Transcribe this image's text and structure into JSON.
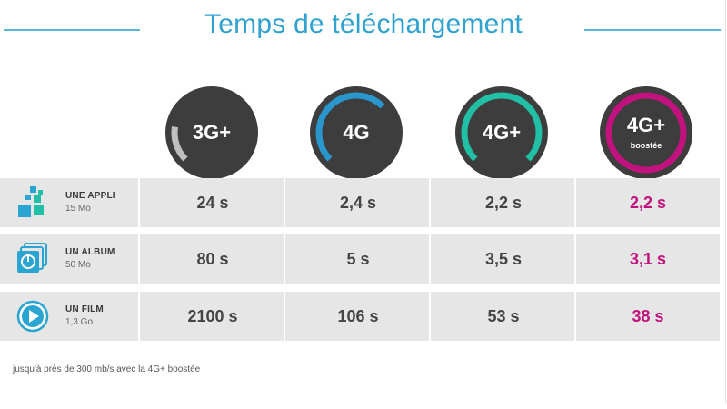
{
  "title": "Temps de téléchargement",
  "colors": {
    "title": "#2fa2cf",
    "circle_bg": "#3d3d3d",
    "highlight_text": "#c2127e"
  },
  "chart_data": {
    "type": "table",
    "columns": [
      {
        "label": "3G+",
        "sub": "",
        "ring_color": "#bfbfbf",
        "ring_fill": 0.15
      },
      {
        "label": "4G",
        "sub": "",
        "ring_color": "#2996cc",
        "ring_fill": 0.5
      },
      {
        "label": "4G+",
        "sub": "",
        "ring_color": "#20bfa6",
        "ring_fill": 0.75
      },
      {
        "label": "4G+",
        "sub": "boostée",
        "ring_color": "#c2127e",
        "ring_fill": 1.0
      }
    ],
    "rows": [
      {
        "name": "UNE APPLI",
        "size": "15 Mo",
        "icon": "app-icon",
        "values": [
          "24 s",
          "2,4 s",
          "2,2 s",
          "2,2 s"
        ]
      },
      {
        "name": "UN ALBUM",
        "size": "50 Mo",
        "icon": "album-icon",
        "values": [
          "80 s",
          "5 s",
          "3,5 s",
          "3,1 s"
        ]
      },
      {
        "name": "UN FILM",
        "size": "1,3 Go",
        "icon": "play-icon",
        "values": [
          "2100 s",
          "106 s",
          "53 s",
          "38 s"
        ]
      }
    ]
  },
  "footnote": "jusqu'à près de 300 mb/s avec la 4G+ boostée"
}
